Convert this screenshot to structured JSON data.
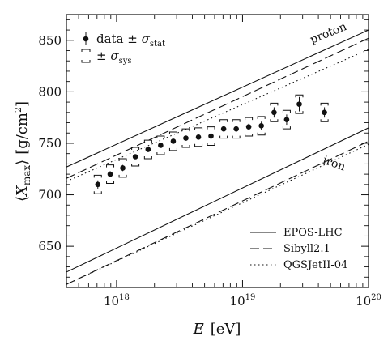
{
  "chart_data": {
    "type": "scatter",
    "xscale": "log",
    "xlim": [
      4e+17,
      1e+20
    ],
    "ylim": [
      610,
      875
    ],
    "xlabel": "E [eV]",
    "ylabel": "⟨Xmax⟩ [g/cm²]",
    "x_ticks": [
      {
        "value": 1e+18,
        "base": "10",
        "exp": "18"
      },
      {
        "value": 1e+19,
        "base": "10",
        "exp": "19"
      },
      {
        "value": 1e+20,
        "base": "10",
        "exp": "20"
      }
    ],
    "y_ticks": [
      650,
      700,
      750,
      800,
      850
    ],
    "legend_top": {
      "position": "top-left",
      "data_label": "data ± σ_stat",
      "data_text": "data ±",
      "data_sigma": "σ",
      "data_sub": "stat",
      "sys_label": "± σ_sys",
      "sys_text": "±",
      "sys_sigma": "σ",
      "sys_sub": "sys"
    },
    "data": {
      "x": [
        7.1e+17,
        8.9e+17,
        1.12e+18,
        1.41e+18,
        1.78e+18,
        2.24e+18,
        2.82e+18,
        3.55e+18,
        4.47e+18,
        5.62e+18,
        7.08e+18,
        8.91e+18,
        1.12e+19,
        1.41e+19,
        1.78e+19,
        2.24e+19,
        2.82e+19,
        4.47e+19
      ],
      "y": [
        710,
        720,
        726,
        737,
        744,
        748,
        752,
        755,
        756,
        757,
        764,
        764,
        766,
        767,
        780,
        773,
        788,
        780
      ],
      "stat_err": [
        4,
        3,
        3,
        2,
        2,
        2,
        2,
        2,
        2,
        2,
        2,
        3,
        3,
        4,
        5,
        5,
        7,
        5
      ],
      "sys_err": [
        9,
        9,
        9,
        9,
        9,
        9,
        9,
        9,
        9,
        9,
        9,
        9,
        9,
        9,
        9,
        9,
        9,
        9
      ]
    },
    "models": [
      {
        "name": "EPOS-LHC",
        "style": "solid",
        "proton": [
          [
            4e+17,
            727
          ],
          [
            1e+20,
            860
          ]
        ],
        "iron": [
          [
            4e+17,
            625
          ],
          [
            1e+20,
            765
          ]
        ]
      },
      {
        "name": "Sibyll2.1",
        "style": "dashed",
        "proton": [
          [
            4e+17,
            716
          ],
          [
            1e+20,
            852
          ]
        ],
        "iron": [
          [
            4e+17,
            613
          ],
          [
            1e+20,
            752
          ]
        ]
      },
      {
        "name": "QGSJetII-04",
        "style": "dotted",
        "proton": [
          [
            4e+17,
            713
          ],
          [
            1e+20,
            841
          ]
        ],
        "iron": [
          [
            4e+17,
            613
          ],
          [
            1e+20,
            749
          ]
        ]
      }
    ],
    "annotations": [
      "proton",
      "iron"
    ],
    "legend_bottom_position": "bottom-right"
  }
}
